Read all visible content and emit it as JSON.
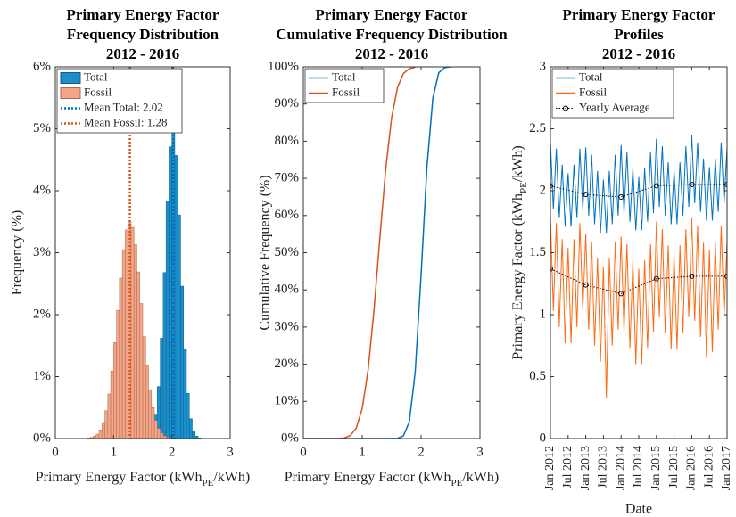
{
  "chart_data": [
    {
      "type": "histogram",
      "title": [
        "Primary Energy Factor",
        "Frequency Distribution",
        "2012 - 2016"
      ],
      "xlabel": {
        "text": "Primary Energy Factor (kWh",
        "sub": "PE",
        "end": "/kWh)"
      },
      "ylabel": "Frequency (%)",
      "xlim": [
        0,
        3
      ],
      "xticks": [
        0,
        1,
        2,
        3
      ],
      "ylim": [
        0,
        6
      ],
      "yticks": [
        {
          "value": 0,
          "label": "0%"
        },
        {
          "value": 1,
          "label": "1%"
        },
        {
          "value": 2,
          "label": "2%"
        },
        {
          "value": 3,
          "label": "3%"
        },
        {
          "value": 4,
          "label": "4%"
        },
        {
          "value": 5,
          "label": "5%"
        },
        {
          "value": 6,
          "label": "6%"
        }
      ],
      "bins": [
        0.4,
        0.45,
        0.5,
        0.55,
        0.6,
        0.65,
        0.7,
        0.75,
        0.8,
        0.85,
        0.9,
        0.95,
        1.0,
        1.05,
        1.1,
        1.15,
        1.2,
        1.25,
        1.3,
        1.35,
        1.4,
        1.45,
        1.5,
        1.55,
        1.6,
        1.65,
        1.7,
        1.75,
        1.8,
        1.85,
        1.9,
        1.95,
        2.0,
        2.05,
        2.1,
        2.15,
        2.2,
        2.25,
        2.3,
        2.35,
        2.4,
        2.45,
        2.5,
        2.55,
        2.6
      ],
      "series": [
        {
          "name": "Total",
          "color": "#1a8fcc",
          "edge": "#0b5f8c",
          "values": [
            0,
            0,
            0,
            0,
            0,
            0,
            0,
            0,
            0,
            0,
            0,
            0,
            0,
            0,
            0,
            0,
            0,
            0,
            0,
            0,
            0,
            0,
            0,
            0.01,
            0.05,
            0.15,
            0.38,
            0.84,
            1.62,
            2.68,
            3.83,
            4.71,
            5.0,
            4.57,
            3.61,
            2.46,
            1.44,
            0.73,
            0.32,
            0.12,
            0.04,
            0.01,
            0,
            0
          ]
        },
        {
          "name": "Fossil",
          "color": "#f2a587",
          "edge": "#b06a50",
          "values": [
            0,
            0,
            0,
            0.01,
            0.02,
            0.04,
            0.07,
            0.14,
            0.26,
            0.45,
            0.72,
            1.09,
            1.55,
            2.07,
            2.59,
            3.05,
            3.37,
            3.5,
            3.41,
            3.13,
            2.69,
            2.18,
            1.65,
            1.18,
            0.79,
            0.5,
            0.29,
            0.16,
            0.09,
            0.04,
            0.02,
            0,
            0,
            0,
            0,
            0,
            0,
            0,
            0,
            0,
            0,
            0,
            0,
            0
          ]
        }
      ],
      "mean_lines": [
        {
          "name": "Mean Total: 2.02",
          "value": 2.02,
          "color": "#0072bd"
        },
        {
          "name": "Mean Fossil: 1.28",
          "value": 1.28,
          "color": "#d95319"
        }
      ]
    },
    {
      "type": "line",
      "title": [
        "Primary Energy Factor",
        "Cumulative Frequency Distribution",
        "2012 - 2016"
      ],
      "xlabel": {
        "text": "Primary Energy Factor (kWh",
        "sub": "PE",
        "end": "/kWh)"
      },
      "ylabel": "Cumulative Frequency (%)",
      "xlim": [
        0,
        3
      ],
      "xticks": [
        0,
        1,
        2,
        3
      ],
      "ylim": [
        0,
        100
      ],
      "yticks": [
        {
          "value": 0,
          "label": "0%"
        },
        {
          "value": 10,
          "label": "10%"
        },
        {
          "value": 20,
          "label": "20%"
        },
        {
          "value": 30,
          "label": "30%"
        },
        {
          "value": 40,
          "label": "40%"
        },
        {
          "value": 50,
          "label": "50%"
        },
        {
          "value": 60,
          "label": "60%"
        },
        {
          "value": 70,
          "label": "70%"
        },
        {
          "value": 80,
          "label": "80%"
        },
        {
          "value": 90,
          "label": "90%"
        },
        {
          "value": 100,
          "label": "100%"
        }
      ],
      "x": [
        0,
        0.4,
        0.6,
        0.7,
        0.8,
        0.9,
        1.0,
        1.1,
        1.2,
        1.3,
        1.4,
        1.5,
        1.6,
        1.7,
        1.8,
        1.9,
        2.0,
        2.1,
        2.2,
        2.3,
        2.4,
        2.5
      ],
      "series": [
        {
          "name": "Total",
          "color": "#0072bd",
          "values": [
            0,
            0,
            0,
            0,
            0,
            0,
            0,
            0,
            0,
            0,
            0,
            0,
            0.06,
            0.7,
            4.5,
            17.9,
            44.0,
            73.2,
            91.6,
            98.4,
            99.8,
            100
          ]
        },
        {
          "name": "Fossil",
          "color": "#d95319",
          "values": [
            0,
            0,
            0.03,
            0.19,
            0.82,
            2.87,
            8.08,
            18.4,
            34.5,
            54.0,
            72.6,
            86.4,
            94.5,
            98.2,
            99.5,
            99.9,
            null,
            null,
            null,
            null,
            null,
            null
          ]
        }
      ]
    },
    {
      "type": "timeseries",
      "title": [
        "Primary Energy Factor",
        "Profiles",
        "2012 - 2016"
      ],
      "xlabel": "Date",
      "ylabel": {
        "text": "Primary Energy Factor (kWh",
        "sub": "PE",
        "end": "/kWh)"
      },
      "xlim": [
        "2012-01",
        "2017-01"
      ],
      "xticks": [
        {
          "value": "2012-01",
          "label": "Jan 2012"
        },
        {
          "value": "2012-07",
          "label": "Jul 2012"
        },
        {
          "value": "2013-01",
          "label": "Jan 2013"
        },
        {
          "value": "2013-07",
          "label": "Jul 2013"
        },
        {
          "value": "2014-01",
          "label": "Jan 2014"
        },
        {
          "value": "2014-07",
          "label": "Jul 2014"
        },
        {
          "value": "2015-01",
          "label": "Jan 2015"
        },
        {
          "value": "2015-07",
          "label": "Jul 2015"
        },
        {
          "value": "2016-01",
          "label": "Jan 2016"
        },
        {
          "value": "2016-07",
          "label": "Jul 2016"
        },
        {
          "value": "2017-01",
          "label": "Jan 2017"
        }
      ],
      "ylim": [
        0,
        3
      ],
      "yticks": [
        0,
        0.5,
        1,
        1.5,
        2,
        2.5,
        3
      ],
      "x": [
        "2012-01",
        "2012-02",
        "2012-03",
        "2012-04",
        "2012-05",
        "2012-06",
        "2012-07",
        "2012-08",
        "2012-09",
        "2012-10",
        "2012-11",
        "2012-12",
        "2013-01",
        "2013-02",
        "2013-03",
        "2013-04",
        "2013-05",
        "2013-06",
        "2013-07",
        "2013-08",
        "2013-09",
        "2013-10",
        "2013-11",
        "2013-12",
        "2014-01",
        "2014-02",
        "2014-03",
        "2014-04",
        "2014-05",
        "2014-06",
        "2014-07",
        "2014-08",
        "2014-09",
        "2014-10",
        "2014-11",
        "2014-12",
        "2015-01",
        "2015-02",
        "2015-03",
        "2015-04",
        "2015-05",
        "2015-06",
        "2015-07",
        "2015-08",
        "2015-09",
        "2015-10",
        "2015-11",
        "2015-12",
        "2016-01",
        "2016-02",
        "2016-03",
        "2016-04",
        "2016-05",
        "2016-06",
        "2016-07",
        "2016-08",
        "2016-09",
        "2016-10",
        "2016-11",
        "2016-12",
        "2017-01"
      ],
      "series": [
        {
          "name": "Total",
          "color": "#0072bd",
          "values": [
            2.4,
            1.85,
            2.34,
            1.78,
            2.21,
            1.71,
            2.14,
            1.71,
            2.21,
            1.78,
            2.34,
            1.85,
            2.35,
            1.8,
            2.29,
            1.73,
            2.16,
            1.66,
            2.09,
            1.66,
            2.16,
            1.73,
            2.29,
            1.8,
            2.37,
            1.82,
            2.31,
            1.75,
            2.18,
            1.68,
            2.11,
            1.68,
            2.18,
            1.75,
            2.31,
            1.82,
            2.42,
            1.87,
            2.36,
            1.8,
            2.23,
            1.73,
            2.16,
            1.73,
            2.23,
            1.8,
            2.36,
            1.87,
            2.45,
            1.9,
            2.39,
            1.83,
            2.26,
            1.76,
            2.19,
            1.76,
            2.26,
            1.83,
            2.39,
            1.9,
            2.35
          ]
        },
        {
          "name": "Fossil",
          "color": "#ff6a13",
          "values": [
            1.8,
            1.03,
            1.74,
            0.9,
            1.61,
            0.77,
            1.54,
            0.77,
            1.61,
            0.9,
            1.74,
            1.03,
            1.65,
            0.88,
            1.59,
            0.75,
            1.46,
            0.62,
            1.39,
            0.33,
            1.46,
            0.75,
            1.59,
            0.88,
            1.63,
            0.86,
            1.57,
            0.73,
            1.44,
            0.6,
            1.37,
            0.6,
            1.44,
            0.73,
            1.57,
            0.86,
            1.75,
            0.98,
            1.69,
            0.85,
            1.56,
            0.72,
            1.49,
            0.72,
            1.56,
            0.85,
            1.69,
            0.98,
            1.78,
            0.95,
            1.72,
            0.82,
            1.58,
            0.65,
            1.52,
            0.7,
            1.59,
            0.88,
            1.72,
            0.98,
            1.6
          ]
        }
      ],
      "yearly_average": {
        "name": "Yearly Average",
        "color": "#000000",
        "x": [
          "2012-01",
          "2013-01",
          "2014-01",
          "2015-01",
          "2016-01",
          "2017-01"
        ],
        "series": [
          {
            "values": [
              2.04,
              1.97,
              1.95,
              2.04,
              2.05,
              2.05
            ]
          },
          {
            "values": [
              1.37,
              1.24,
              1.17,
              1.29,
              1.31,
              1.31
            ]
          }
        ]
      }
    }
  ]
}
